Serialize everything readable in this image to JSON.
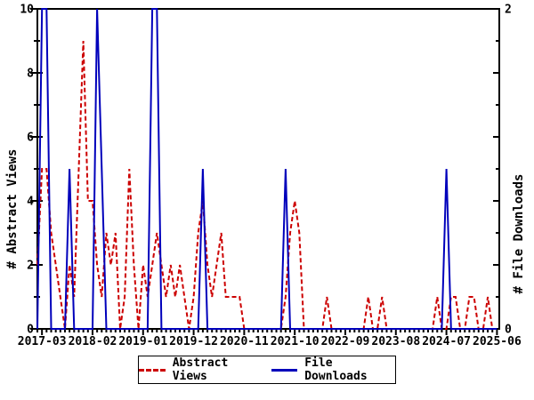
{
  "axes": {
    "left_title": "# Abstract Views",
    "right_title": "# File Downloads"
  },
  "legend": {
    "abstract_views": "Abstract Views",
    "file_downloads": "File Downloads"
  },
  "chart_data": {
    "type": "line",
    "grid": false,
    "legend_position": "bottom-center",
    "colors": {
      "abstract_views": "#cc0000",
      "file_downloads": "#0000bb",
      "axis": "#000000"
    },
    "left_axis": {
      "label": "# Abstract Views",
      "min": 0,
      "max": 10,
      "tick_labels": [
        "0",
        "2",
        "4",
        "6",
        "8",
        "10"
      ]
    },
    "right_axis": {
      "label": "# File Downloads",
      "min": 0,
      "max": 2,
      "tick_labels": [
        "0",
        "2"
      ]
    },
    "x_axis": {
      "tick_indices": [
        1,
        12,
        23,
        34,
        45,
        56,
        67,
        78,
        89,
        100
      ],
      "tick_labels": [
        "2017-03",
        "2018-02",
        "2019-01",
        "2019-12",
        "2020-11",
        "2021-10",
        "2022-09",
        "2023-08",
        "2024-07",
        "2025-06"
      ]
    },
    "months": [
      "2017-02",
      "2017-03",
      "2017-04",
      "2017-05",
      "2017-06",
      "2017-07",
      "2017-08",
      "2017-09",
      "2017-10",
      "2017-11",
      "2017-12",
      "2018-01",
      "2018-02",
      "2018-03",
      "2018-04",
      "2018-05",
      "2018-06",
      "2018-07",
      "2018-08",
      "2018-09",
      "2018-10",
      "2018-11",
      "2018-12",
      "2019-01",
      "2019-02",
      "2019-03",
      "2019-04",
      "2019-05",
      "2019-06",
      "2019-07",
      "2019-08",
      "2019-09",
      "2019-10",
      "2019-11",
      "2019-12",
      "2020-01",
      "2020-02",
      "2020-03",
      "2020-04",
      "2020-05",
      "2020-06",
      "2020-07",
      "2020-08",
      "2020-09",
      "2020-10",
      "2020-11",
      "2020-12",
      "2021-01",
      "2021-02",
      "2021-03",
      "2021-04",
      "2021-05",
      "2021-06",
      "2021-07",
      "2021-08",
      "2021-09",
      "2021-10",
      "2021-11",
      "2021-12",
      "2022-01",
      "2022-02",
      "2022-03",
      "2022-04",
      "2022-05",
      "2022-06",
      "2022-07",
      "2022-08",
      "2022-09",
      "2022-10",
      "2022-11",
      "2022-12",
      "2023-01",
      "2023-02",
      "2023-03",
      "2023-04",
      "2023-05",
      "2023-06",
      "2023-07",
      "2023-08",
      "2023-09",
      "2023-10",
      "2023-11",
      "2023-12",
      "2024-01",
      "2024-02",
      "2024-03",
      "2024-04",
      "2024-05",
      "2024-06",
      "2024-07",
      "2024-08",
      "2024-09",
      "2024-10",
      "2024-11",
      "2024-12",
      "2025-01",
      "2025-02",
      "2025-03",
      "2025-04",
      "2025-05",
      "2025-06"
    ],
    "series": [
      {
        "name": "Abstract Views",
        "axis": "left",
        "style": "dashed",
        "color": "#cc0000",
        "values": [
          2,
          5,
          5,
          3,
          2,
          1,
          0,
          2,
          1,
          5,
          9,
          4,
          4,
          2,
          1,
          3,
          2,
          3,
          0,
          1,
          5,
          2,
          0,
          2,
          1,
          2,
          3,
          2,
          1,
          2,
          1,
          2,
          1,
          0,
          1,
          3,
          4,
          2,
          1,
          2,
          3,
          1,
          1,
          1,
          1,
          0,
          0,
          0,
          0,
          0,
          0,
          0,
          0,
          0,
          1,
          3,
          4,
          3,
          0,
          0,
          0,
          0,
          0,
          1,
          0,
          0,
          0,
          0,
          0,
          0,
          0,
          0,
          1,
          0,
          0,
          1,
          0,
          0,
          0,
          0,
          0,
          0,
          0,
          0,
          0,
          0,
          0,
          1,
          0,
          0,
          1,
          1,
          0,
          0,
          1,
          1,
          0,
          0,
          1,
          0,
          0
        ]
      },
      {
        "name": "File Downloads",
        "axis": "right",
        "style": "solid",
        "color": "#0000bb",
        "values": [
          0,
          2,
          2,
          0,
          0,
          0,
          0,
          1,
          0,
          0,
          0,
          0,
          0,
          2,
          1,
          0,
          0,
          0,
          0,
          0,
          0,
          0,
          0,
          0,
          0,
          2,
          2,
          0,
          0,
          0,
          0,
          0,
          0,
          0,
          0,
          0,
          1,
          0,
          0,
          0,
          0,
          0,
          0,
          0,
          0,
          0,
          0,
          0,
          0,
          0,
          0,
          0,
          0,
          0,
          1,
          0,
          0,
          0,
          0,
          0,
          0,
          0,
          0,
          0,
          0,
          0,
          0,
          0,
          0,
          0,
          0,
          0,
          0,
          0,
          0,
          0,
          0,
          0,
          0,
          0,
          0,
          0,
          0,
          0,
          0,
          0,
          0,
          0,
          0,
          1,
          0,
          0,
          0,
          0,
          0,
          0,
          0,
          0,
          0,
          0,
          0
        ]
      }
    ]
  }
}
